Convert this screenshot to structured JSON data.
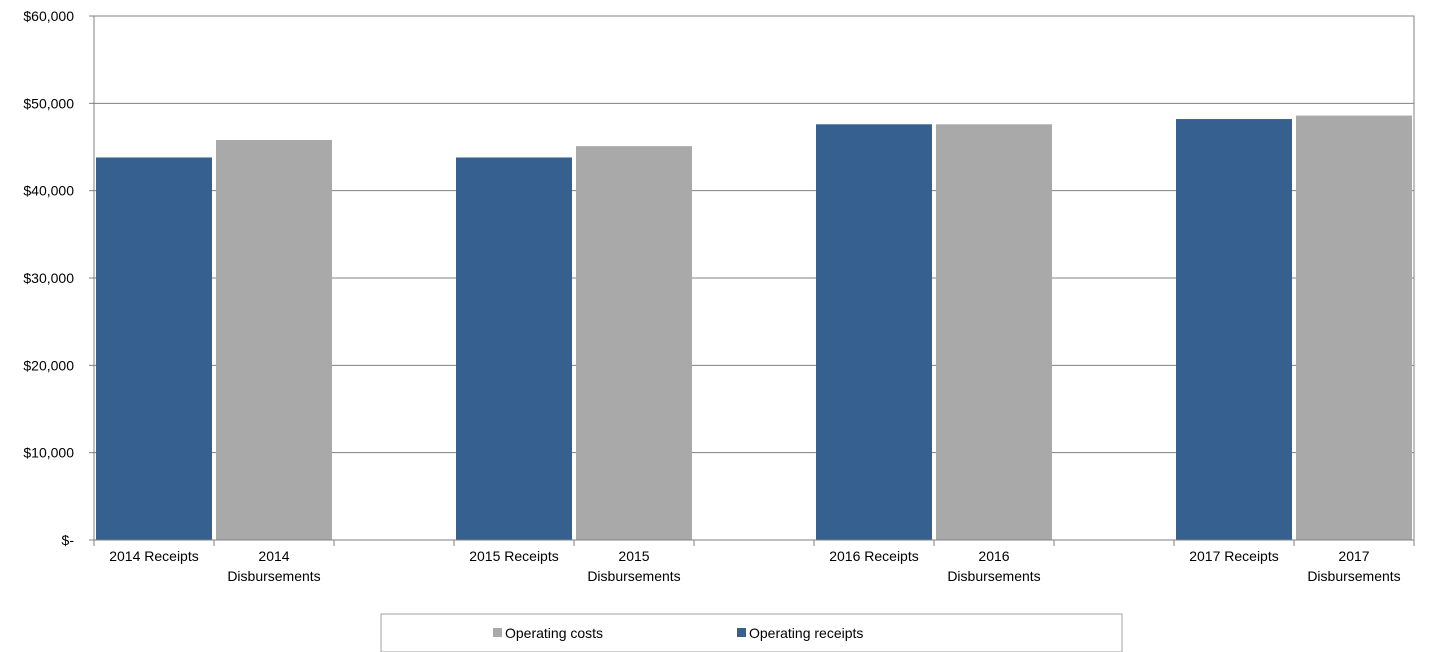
{
  "chart_data": {
    "type": "bar",
    "categories": [
      "2014 Receipts",
      "2014 Disbursements",
      "",
      "2015 Receipts",
      "2015 Disbursements",
      "",
      "2016 Receipts",
      "2016 Disbursements",
      "",
      "2017 Receipts",
      "2017 Disbursements"
    ],
    "series": [
      {
        "name": "Operating receipts",
        "color": "#35608f",
        "values": [
          43800,
          null,
          null,
          43800,
          null,
          null,
          47600,
          null,
          null,
          48200,
          null
        ]
      },
      {
        "name": "Operating costs",
        "color": "#a9a9a9",
        "values": [
          null,
          45800,
          null,
          null,
          45100,
          null,
          null,
          47600,
          null,
          null,
          48600
        ]
      }
    ],
    "y_tick_labels": [
      "$-",
      "$10,000",
      "$20,000",
      "$30,000",
      "$40,000",
      "$50,000",
      "$60,000"
    ],
    "ylim": [
      0,
      60000
    ],
    "grid": true,
    "legend": {
      "position": "bottom",
      "entries": [
        "Operating costs",
        "Operating receipts"
      ]
    }
  }
}
